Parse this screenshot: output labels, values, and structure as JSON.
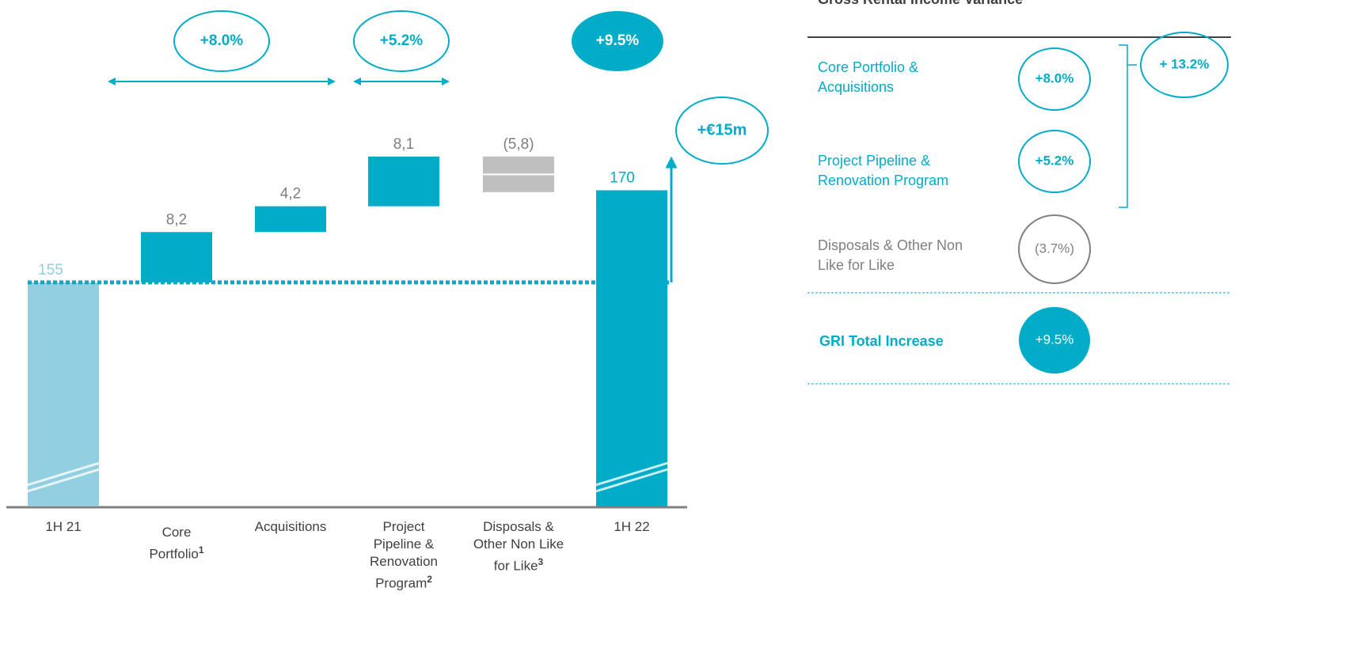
{
  "chart_data": {
    "type": "waterfall",
    "categories": [
      "1H 21",
      "Core Portfolio",
      "Acquisitions",
      "Project Pipeline & Renovation Program",
      "Disposals & Other Non Like for Like",
      "1H 22"
    ],
    "footnotes": [
      null,
      "1",
      null,
      "2",
      "3",
      null
    ],
    "values": [
      155,
      8.2,
      4.2,
      8.1,
      -5.8,
      170
    ],
    "value_labels": [
      "155",
      "8,2",
      "4,2",
      "8,1",
      "(5,8)",
      "170"
    ],
    "totals": [
      true,
      false,
      false,
      false,
      false,
      true
    ],
    "colors": [
      "#92cfe0",
      "#00acc8",
      "#00acc8",
      "#00acc8",
      "#bfbfbf",
      "#00acc8"
    ],
    "ylim": [
      118.5,
      201
    ],
    "annotations": [
      "+8.0%",
      "+5.2%",
      "+9.5%",
      "+€15m"
    ]
  },
  "panel": {
    "title": "Gross Rental Income Variance",
    "rows": [
      {
        "label": "Core Portfolio & Acquisitions",
        "value": "+8.0%"
      },
      {
        "label": "Project Pipeline & Renovation Program",
        "value": "+5.2%"
      },
      {
        "label": "Disposals & Other Non Like for Like",
        "value": "(3.7%)"
      }
    ],
    "subtotal": "+ 13.2%",
    "total": {
      "label": "GRI Total Increase",
      "value": "+9.5%"
    }
  }
}
